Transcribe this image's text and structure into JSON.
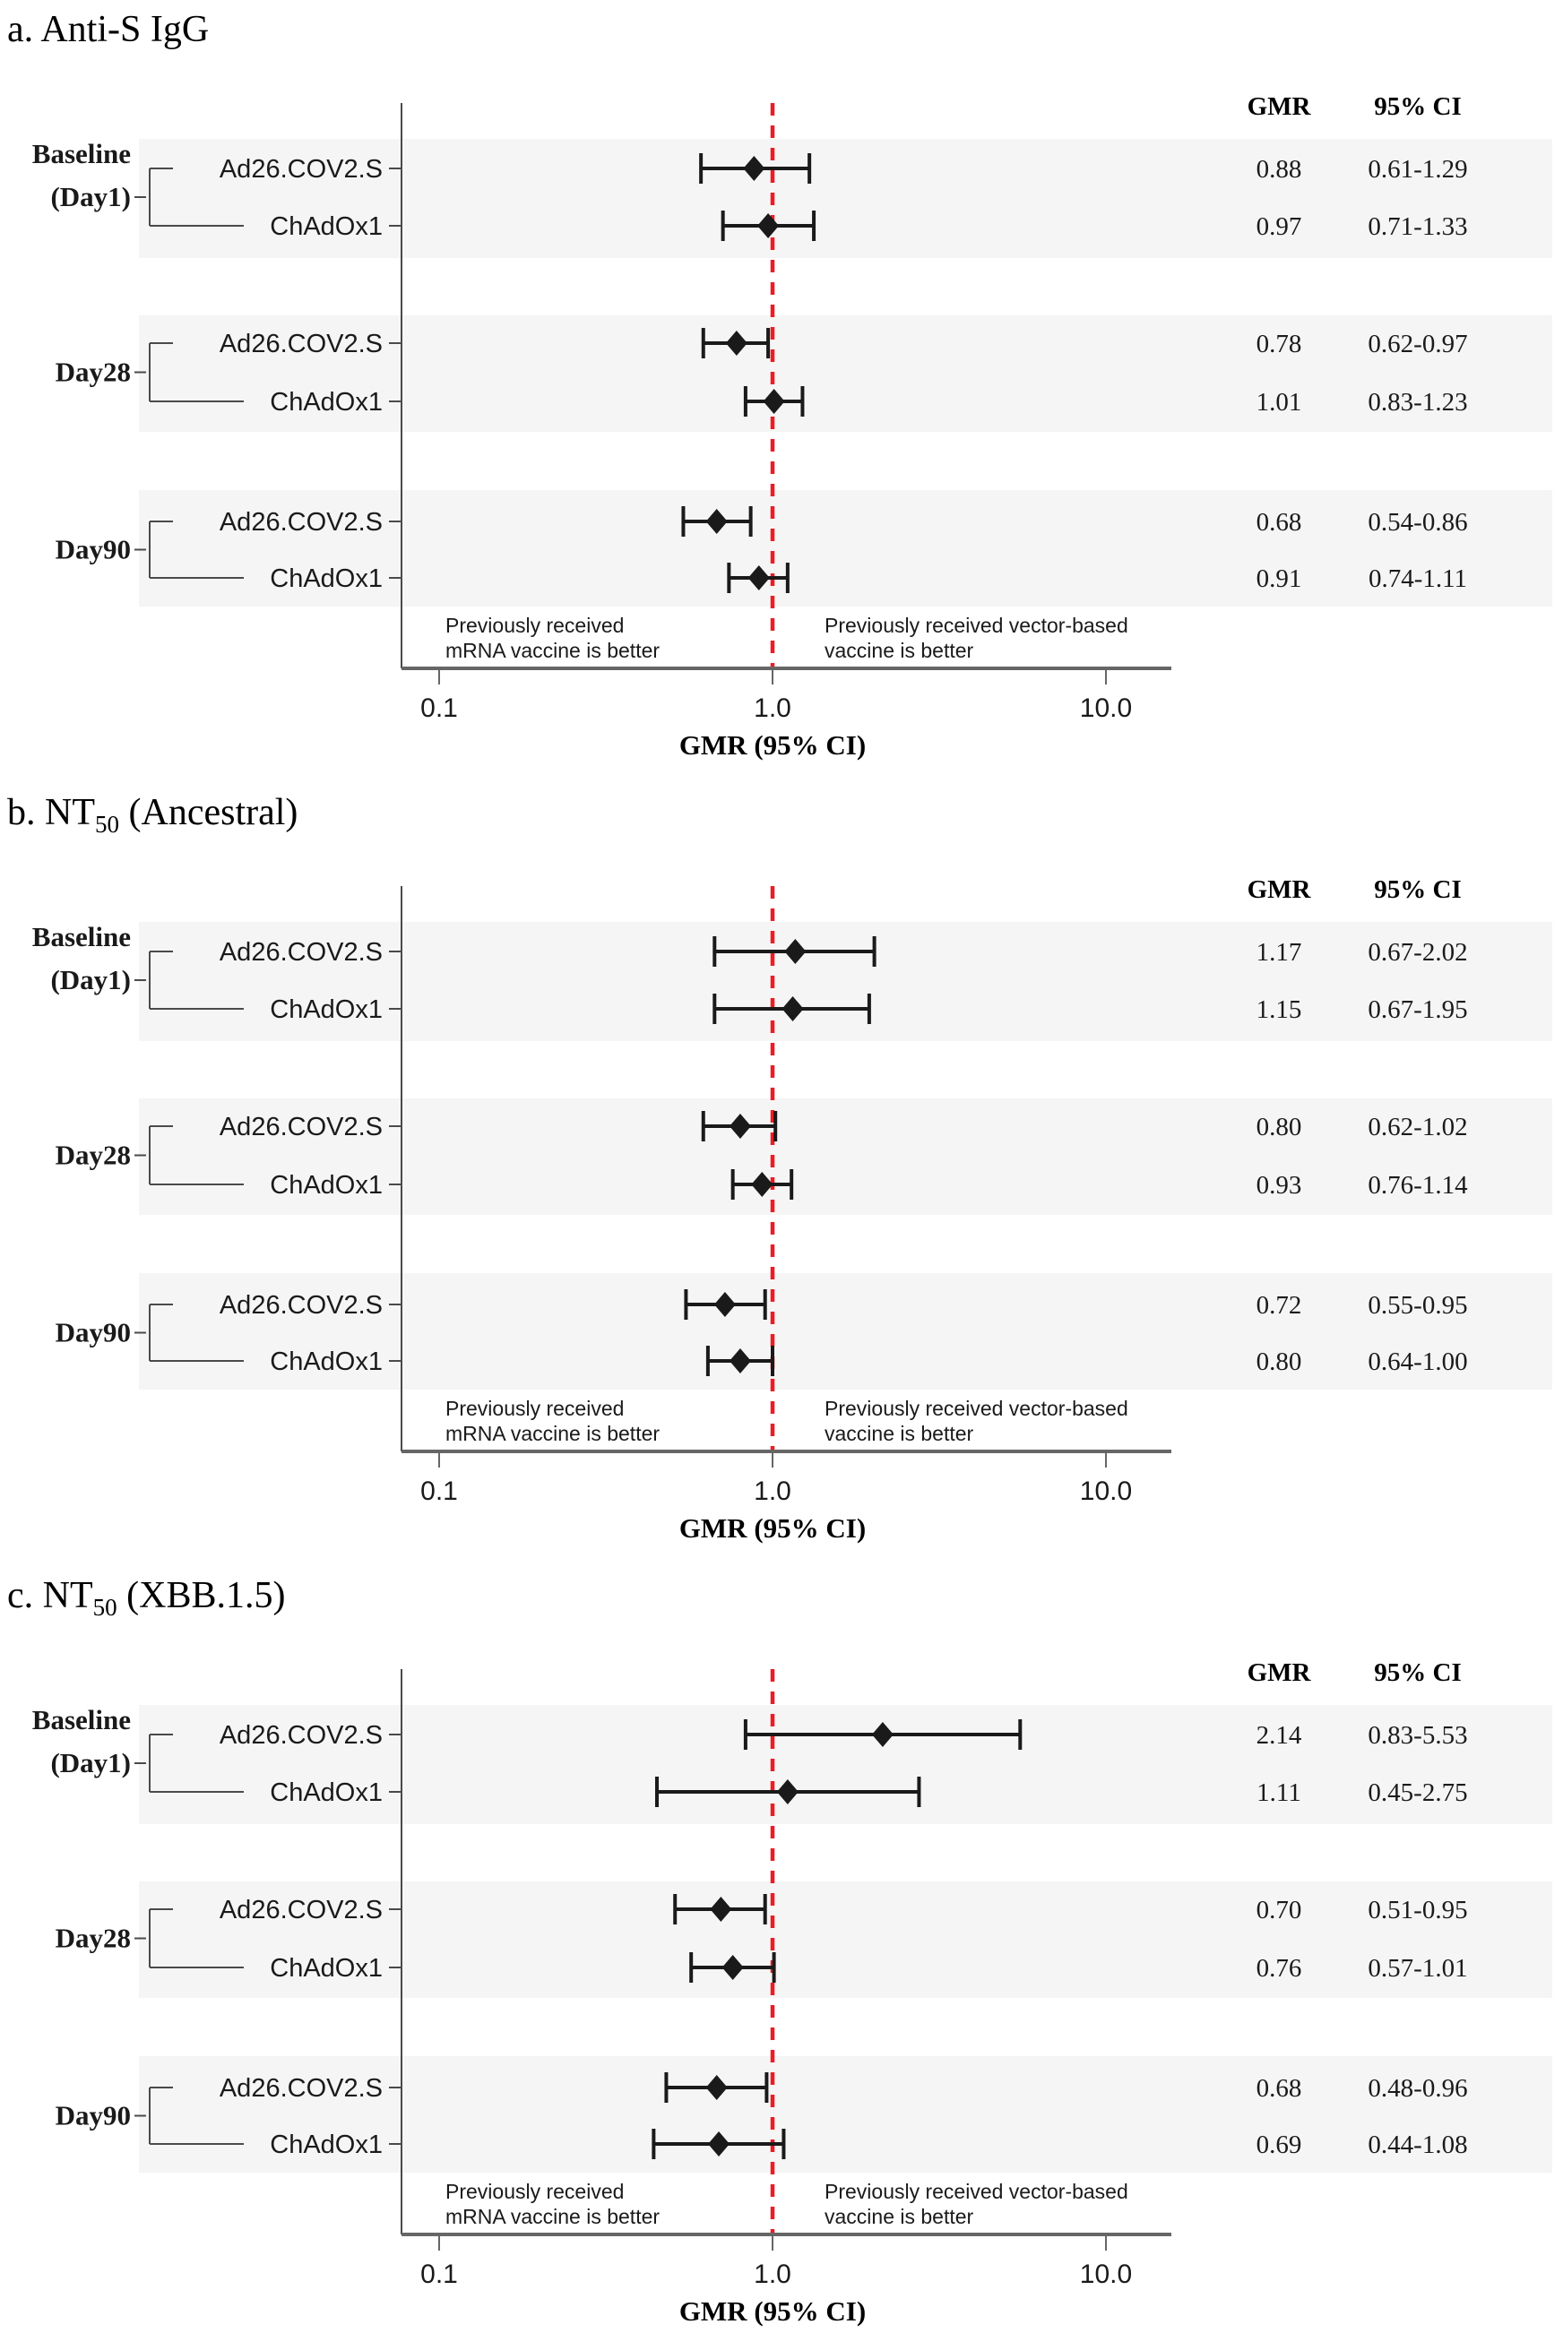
{
  "figure": {
    "axis": {
      "label": "GMR (95% CI)",
      "ticks": [
        {
          "text": "0.1",
          "value": 0.1
        },
        {
          "text": "1.0",
          "value": 1.0
        },
        {
          "text": "10.0",
          "value": 10.0
        }
      ],
      "reference_value": 1.0,
      "scale": "log10"
    },
    "columns": {
      "gmr": "GMR",
      "ci": "95% CI"
    },
    "annotations": {
      "left_line1": "Previously received",
      "left_line2": "mRNA vaccine is better",
      "right_line1": "Previously received vector-based",
      "right_line2": "vaccine is better"
    },
    "colors": {
      "reference_line": "#ed1c24",
      "band": "#f5f5f5",
      "marker": "#1a1a1a",
      "axis_line": "#666666",
      "connector": "#4a4a4a"
    }
  },
  "chart_data": [
    {
      "type": "forest",
      "panel_id": "a",
      "title": {
        "prefix": "a. Anti-S IgG",
        "sub": "",
        "suffix": ""
      },
      "xlabel": "GMR (95% CI)",
      "x_ticks": [
        0.1,
        1.0,
        10.0
      ],
      "reference": 1.0,
      "groups": [
        {
          "label_lines": [
            "Baseline",
            "(Day1)"
          ],
          "rows": [
            {
              "arm": "Ad26.COV2.S",
              "gmr": 0.88,
              "lo": 0.61,
              "hi": 1.29,
              "gmr_text": "0.88",
              "ci_text": "0.61-1.29"
            },
            {
              "arm": "ChAdOx1",
              "gmr": 0.97,
              "lo": 0.71,
              "hi": 1.33,
              "gmr_text": "0.97",
              "ci_text": "0.71-1.33"
            }
          ]
        },
        {
          "label_lines": [
            "Day28"
          ],
          "rows": [
            {
              "arm": "Ad26.COV2.S",
              "gmr": 0.78,
              "lo": 0.62,
              "hi": 0.97,
              "gmr_text": "0.78",
              "ci_text": "0.62-0.97"
            },
            {
              "arm": "ChAdOx1",
              "gmr": 1.01,
              "lo": 0.83,
              "hi": 1.23,
              "gmr_text": "1.01",
              "ci_text": "0.83-1.23"
            }
          ]
        },
        {
          "label_lines": [
            "Day90"
          ],
          "rows": [
            {
              "arm": "Ad26.COV2.S",
              "gmr": 0.68,
              "lo": 0.54,
              "hi": 0.86,
              "gmr_text": "0.68",
              "ci_text": "0.54-0.86"
            },
            {
              "arm": "ChAdOx1",
              "gmr": 0.91,
              "lo": 0.74,
              "hi": 1.11,
              "gmr_text": "0.91",
              "ci_text": "0.74-1.11"
            }
          ]
        }
      ]
    },
    {
      "type": "forest",
      "panel_id": "b",
      "title": {
        "prefix": "b. NT",
        "sub": "50",
        "suffix": " (Ancestral)"
      },
      "xlabel": "GMR (95% CI)",
      "x_ticks": [
        0.1,
        1.0,
        10.0
      ],
      "reference": 1.0,
      "groups": [
        {
          "label_lines": [
            "Baseline",
            "(Day1)"
          ],
          "rows": [
            {
              "arm": "Ad26.COV2.S",
              "gmr": 1.17,
              "lo": 0.67,
              "hi": 2.02,
              "gmr_text": "1.17",
              "ci_text": "0.67-2.02"
            },
            {
              "arm": "ChAdOx1",
              "gmr": 1.15,
              "lo": 0.67,
              "hi": 1.95,
              "gmr_text": "1.15",
              "ci_text": "0.67-1.95"
            }
          ]
        },
        {
          "label_lines": [
            "Day28"
          ],
          "rows": [
            {
              "arm": "Ad26.COV2.S",
              "gmr": 0.8,
              "lo": 0.62,
              "hi": 1.02,
              "gmr_text": "0.80",
              "ci_text": "0.62-1.02"
            },
            {
              "arm": "ChAdOx1",
              "gmr": 0.93,
              "lo": 0.76,
              "hi": 1.14,
              "gmr_text": "0.93",
              "ci_text": "0.76-1.14"
            }
          ]
        },
        {
          "label_lines": [
            "Day90"
          ],
          "rows": [
            {
              "arm": "Ad26.COV2.S",
              "gmr": 0.72,
              "lo": 0.55,
              "hi": 0.95,
              "gmr_text": "0.72",
              "ci_text": "0.55-0.95"
            },
            {
              "arm": "ChAdOx1",
              "gmr": 0.8,
              "lo": 0.64,
              "hi": 1.0,
              "gmr_text": "0.80",
              "ci_text": "0.64-1.00"
            }
          ]
        }
      ]
    },
    {
      "type": "forest",
      "panel_id": "c",
      "title": {
        "prefix": "c. NT",
        "sub": "50",
        "suffix": " (XBB.1.5)"
      },
      "xlabel": "GMR (95% CI)",
      "x_ticks": [
        0.1,
        1.0,
        10.0
      ],
      "reference": 1.0,
      "groups": [
        {
          "label_lines": [
            "Baseline",
            "(Day1)"
          ],
          "rows": [
            {
              "arm": "Ad26.COV2.S",
              "gmr": 2.14,
              "lo": 0.83,
              "hi": 5.53,
              "gmr_text": "2.14",
              "ci_text": "0.83-5.53"
            },
            {
              "arm": "ChAdOx1",
              "gmr": 1.11,
              "lo": 0.45,
              "hi": 2.75,
              "gmr_text": "1.11",
              "ci_text": "0.45-2.75"
            }
          ]
        },
        {
          "label_lines": [
            "Day28"
          ],
          "rows": [
            {
              "arm": "Ad26.COV2.S",
              "gmr": 0.7,
              "lo": 0.51,
              "hi": 0.95,
              "gmr_text": "0.70",
              "ci_text": "0.51-0.95"
            },
            {
              "arm": "ChAdOx1",
              "gmr": 0.76,
              "lo": 0.57,
              "hi": 1.01,
              "gmr_text": "0.76",
              "ci_text": "0.57-1.01"
            }
          ]
        },
        {
          "label_lines": [
            "Day90"
          ],
          "rows": [
            {
              "arm": "Ad26.COV2.S",
              "gmr": 0.68,
              "lo": 0.48,
              "hi": 0.96,
              "gmr_text": "0.68",
              "ci_text": "0.48-0.96"
            },
            {
              "arm": "ChAdOx1",
              "gmr": 0.69,
              "lo": 0.44,
              "hi": 1.08,
              "gmr_text": "0.69",
              "ci_text": "0.44-1.08"
            }
          ]
        }
      ]
    }
  ]
}
